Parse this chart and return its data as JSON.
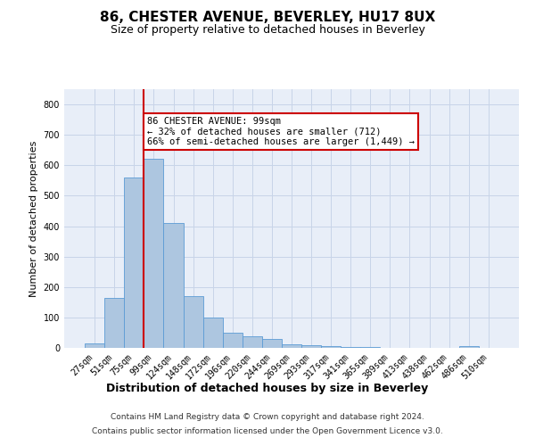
{
  "title": "86, CHESTER AVENUE, BEVERLEY, HU17 8UX",
  "subtitle": "Size of property relative to detached houses in Beverley",
  "xlabel": "Distribution of detached houses by size in Beverley",
  "ylabel": "Number of detached properties",
  "footer_line1": "Contains HM Land Registry data © Crown copyright and database right 2024.",
  "footer_line2": "Contains public sector information licensed under the Open Government Licence v3.0.",
  "bar_labels": [
    "27sqm",
    "51sqm",
    "75sqm",
    "99sqm",
    "124sqm",
    "148sqm",
    "172sqm",
    "196sqm",
    "220sqm",
    "244sqm",
    "269sqm",
    "293sqm",
    "317sqm",
    "341sqm",
    "365sqm",
    "389sqm",
    "413sqm",
    "438sqm",
    "462sqm",
    "486sqm",
    "510sqm"
  ],
  "bar_values": [
    15,
    165,
    560,
    620,
    410,
    170,
    100,
    50,
    38,
    28,
    12,
    10,
    7,
    4,
    4,
    1,
    0,
    0,
    0,
    5,
    0
  ],
  "bar_color": "#adc6e0",
  "bar_edge_color": "#5b9bd5",
  "highlight_index": 3,
  "highlight_line_color": "#cc0000",
  "annotation_text": "86 CHESTER AVENUE: 99sqm\n← 32% of detached houses are smaller (712)\n66% of semi-detached houses are larger (1,449) →",
  "annotation_box_color": "#ffffff",
  "annotation_box_edge_color": "#cc0000",
  "ylim": [
    0,
    850
  ],
  "yticks": [
    0,
    100,
    200,
    300,
    400,
    500,
    600,
    700,
    800
  ],
  "grid_color": "#c8d4e8",
  "bg_color": "#e8eef8",
  "title_fontsize": 11,
  "subtitle_fontsize": 9,
  "tick_fontsize": 7,
  "ylabel_fontsize": 8,
  "xlabel_fontsize": 9,
  "footer_fontsize": 6.5,
  "ann_fontsize": 7.5
}
